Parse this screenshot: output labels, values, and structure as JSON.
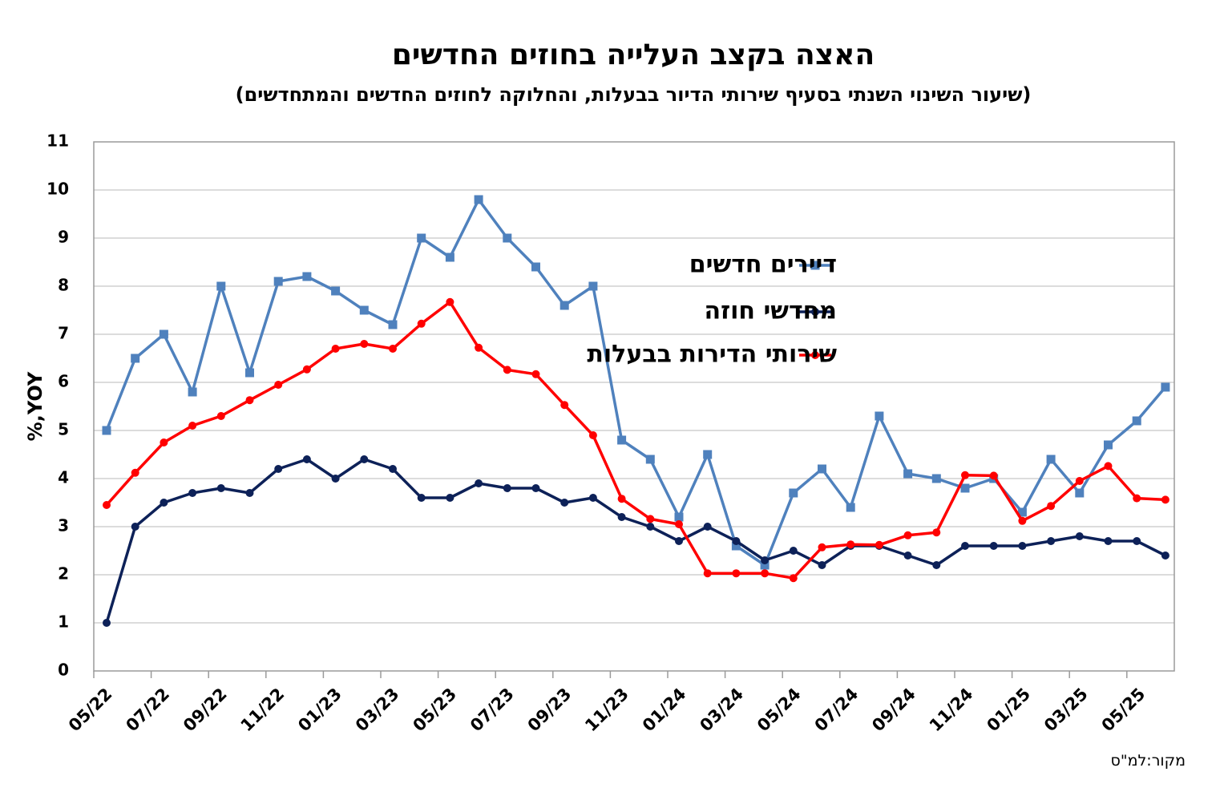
{
  "chart_data": {
    "type": "line",
    "title": "האצה בקצב העלייה בחוזים החדשים",
    "subtitle": "(שיעור השינוי השנתי בסעיף שירותי הדיור בבעלות, והחלוקה לחוזים החדשים והמתחדשים)",
    "ylabel": "%,YOY",
    "source": "מקור:למ\"ס",
    "ylim": [
      0,
      11
    ],
    "yticks": [
      "0",
      "1",
      "2",
      "3",
      "4",
      "5",
      "6",
      "7",
      "8",
      "9",
      "10",
      "11"
    ],
    "xtick_labels": [
      "05/22",
      "07/22",
      "09/22",
      "11/22",
      "01/23",
      "03/23",
      "05/23",
      "07/23",
      "09/23",
      "11/23",
      "01/24",
      "03/24",
      "05/24",
      "07/24",
      "09/24",
      "11/24",
      "01/25",
      "03/25",
      "05/25"
    ],
    "x": [
      "05/22",
      "06/22",
      "07/22",
      "08/22",
      "09/22",
      "10/22",
      "11/22",
      "12/22",
      "01/23",
      "02/23",
      "03/23",
      "04/23",
      "05/23",
      "06/23",
      "07/23",
      "08/23",
      "09/23",
      "10/23",
      "11/23",
      "12/23",
      "01/24",
      "02/24",
      "03/24",
      "04/24",
      "05/24",
      "06/24",
      "07/24",
      "08/24",
      "09/24",
      "10/24",
      "11/24",
      "12/24",
      "01/25",
      "02/25",
      "03/25",
      "04/25",
      "05/25",
      "06/25"
    ],
    "grid": true,
    "legend_position": "top-right",
    "series": [
      {
        "name": "דיירים חדשים",
        "color": "#4f81bd",
        "marker": "square",
        "values": [
          5.0,
          6.5,
          7.0,
          5.8,
          8.0,
          6.2,
          8.1,
          8.2,
          7.9,
          7.5,
          7.2,
          9.0,
          8.6,
          9.8,
          9.0,
          8.4,
          7.6,
          8.0,
          4.8,
          4.4,
          3.2,
          4.5,
          2.6,
          2.2,
          3.7,
          4.2,
          3.4,
          5.3,
          4.1,
          4.0,
          3.8,
          4.0,
          3.3,
          4.4,
          3.7,
          4.7,
          5.2,
          5.9
        ]
      },
      {
        "name": "מחדשי חוזה",
        "color": "#0d2158",
        "marker": "circle",
        "values": [
          1.0,
          3.0,
          3.5,
          3.7,
          3.8,
          3.7,
          4.2,
          4.4,
          4.0,
          4.4,
          4.2,
          3.6,
          3.6,
          3.9,
          3.8,
          3.8,
          3.5,
          3.6,
          3.2,
          3.0,
          2.7,
          3.0,
          2.7,
          2.3,
          2.5,
          2.2,
          2.6,
          2.6,
          2.4,
          2.2,
          2.6,
          2.6,
          2.6,
          2.7,
          2.8,
          2.7,
          2.7,
          2.4
        ]
      },
      {
        "name": "שירותי הדירות בבעלות",
        "color": "#ff0000",
        "marker": "circle",
        "values": [
          3.45,
          4.12,
          4.75,
          5.1,
          5.3,
          5.63,
          5.95,
          6.27,
          6.7,
          6.8,
          6.7,
          7.22,
          7.67,
          6.72,
          6.26,
          6.17,
          5.53,
          4.9,
          3.58,
          3.16,
          3.05,
          2.03,
          2.03,
          2.03,
          1.93,
          2.57,
          2.63,
          2.62,
          2.82,
          2.88,
          4.07,
          4.06,
          3.12,
          3.43,
          3.95,
          4.26,
          3.59,
          3.56
        ]
      }
    ]
  }
}
